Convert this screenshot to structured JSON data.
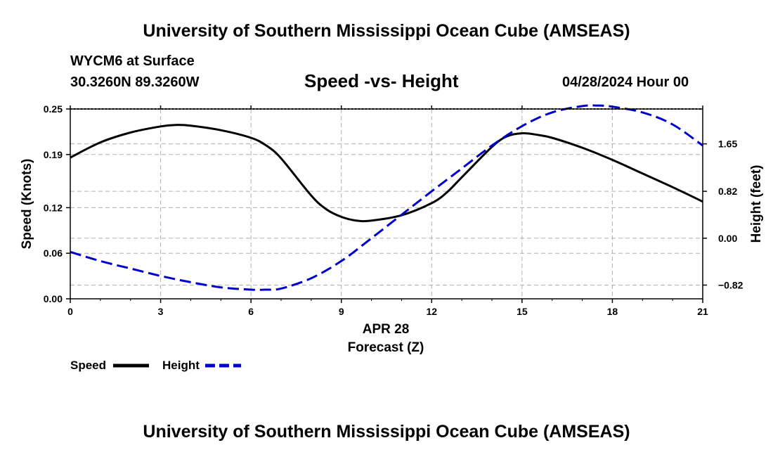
{
  "header": {
    "title": "University of Southern Mississippi Ocean Cube (AMSEAS)",
    "station": "WYCM6 at Surface",
    "coords": "30.3260N  89.3260W",
    "plot_title": "Speed -vs- Height",
    "datetime": "04/28/2024 Hour 00"
  },
  "footer": {
    "title": "University of Southern Mississippi Ocean Cube (AMSEAS)"
  },
  "legend": {
    "speed_label": "Speed",
    "height_label": "Height"
  },
  "colors": {
    "speed": "#000000",
    "height": "#0000cc",
    "grid": "#b0b0b0"
  },
  "chart_data": {
    "type": "line",
    "xlabel": "Forecast (Z)",
    "date_label": "APR 28",
    "ylabel_left": "Speed (Knots)",
    "ylabel_right": "Height (feet)",
    "x_ticks": [
      0,
      3,
      6,
      9,
      12,
      15,
      18,
      21
    ],
    "x_tick_labels": [
      "0",
      "3",
      "6",
      "9",
      "12",
      "15",
      "18",
      "21"
    ],
    "xlim": [
      0,
      21
    ],
    "ylim_left": [
      0,
      0.25
    ],
    "y_left_ticks": [
      0.0,
      0.06,
      0.12,
      0.19,
      0.25
    ],
    "y_left_tick_labels": [
      "0.00",
      "0.06",
      "0.12",
      "0.19",
      "0.25"
    ],
    "ylim_right": [
      -1.06,
      2.26
    ],
    "y_right_ticks": [
      -0.82,
      0.0,
      0.82,
      1.65
    ],
    "y_right_tick_labels": [
      "−0.82",
      "0.00",
      "0.82",
      "1.65"
    ],
    "grid": true,
    "series": [
      {
        "name": "Speed",
        "axis": "left",
        "x": [
          0,
          1,
          2,
          3,
          3.5,
          4,
          5,
          6,
          6.5,
          7,
          8,
          8.5,
          9,
          9.5,
          10,
          11,
          12,
          12.5,
          13,
          14,
          14.5,
          15,
          15.5,
          16,
          17,
          18,
          19,
          20,
          21
        ],
        "values": [
          0.186,
          0.206,
          0.219,
          0.227,
          0.229,
          0.228,
          0.222,
          0.212,
          0.202,
          0.185,
          0.136,
          0.118,
          0.108,
          0.103,
          0.103,
          0.11,
          0.126,
          0.14,
          0.16,
          0.2,
          0.214,
          0.218,
          0.216,
          0.212,
          0.199,
          0.183,
          0.165,
          0.147,
          0.128
        ]
      },
      {
        "name": "Height",
        "axis": "right",
        "x": [
          0,
          1,
          2,
          3,
          4,
          5,
          6,
          6.5,
          7,
          8,
          9,
          10,
          11,
          12,
          13,
          14,
          15,
          16,
          17,
          17.5,
          18,
          19,
          20,
          21
        ],
        "values": [
          -0.24,
          -0.4,
          -0.53,
          -0.66,
          -0.77,
          -0.86,
          -0.9,
          -0.9,
          -0.88,
          -0.7,
          -0.4,
          0.0,
          0.41,
          0.82,
          1.22,
          1.62,
          1.96,
          2.2,
          2.31,
          2.32,
          2.3,
          2.2,
          1.99,
          1.62
        ]
      }
    ]
  }
}
